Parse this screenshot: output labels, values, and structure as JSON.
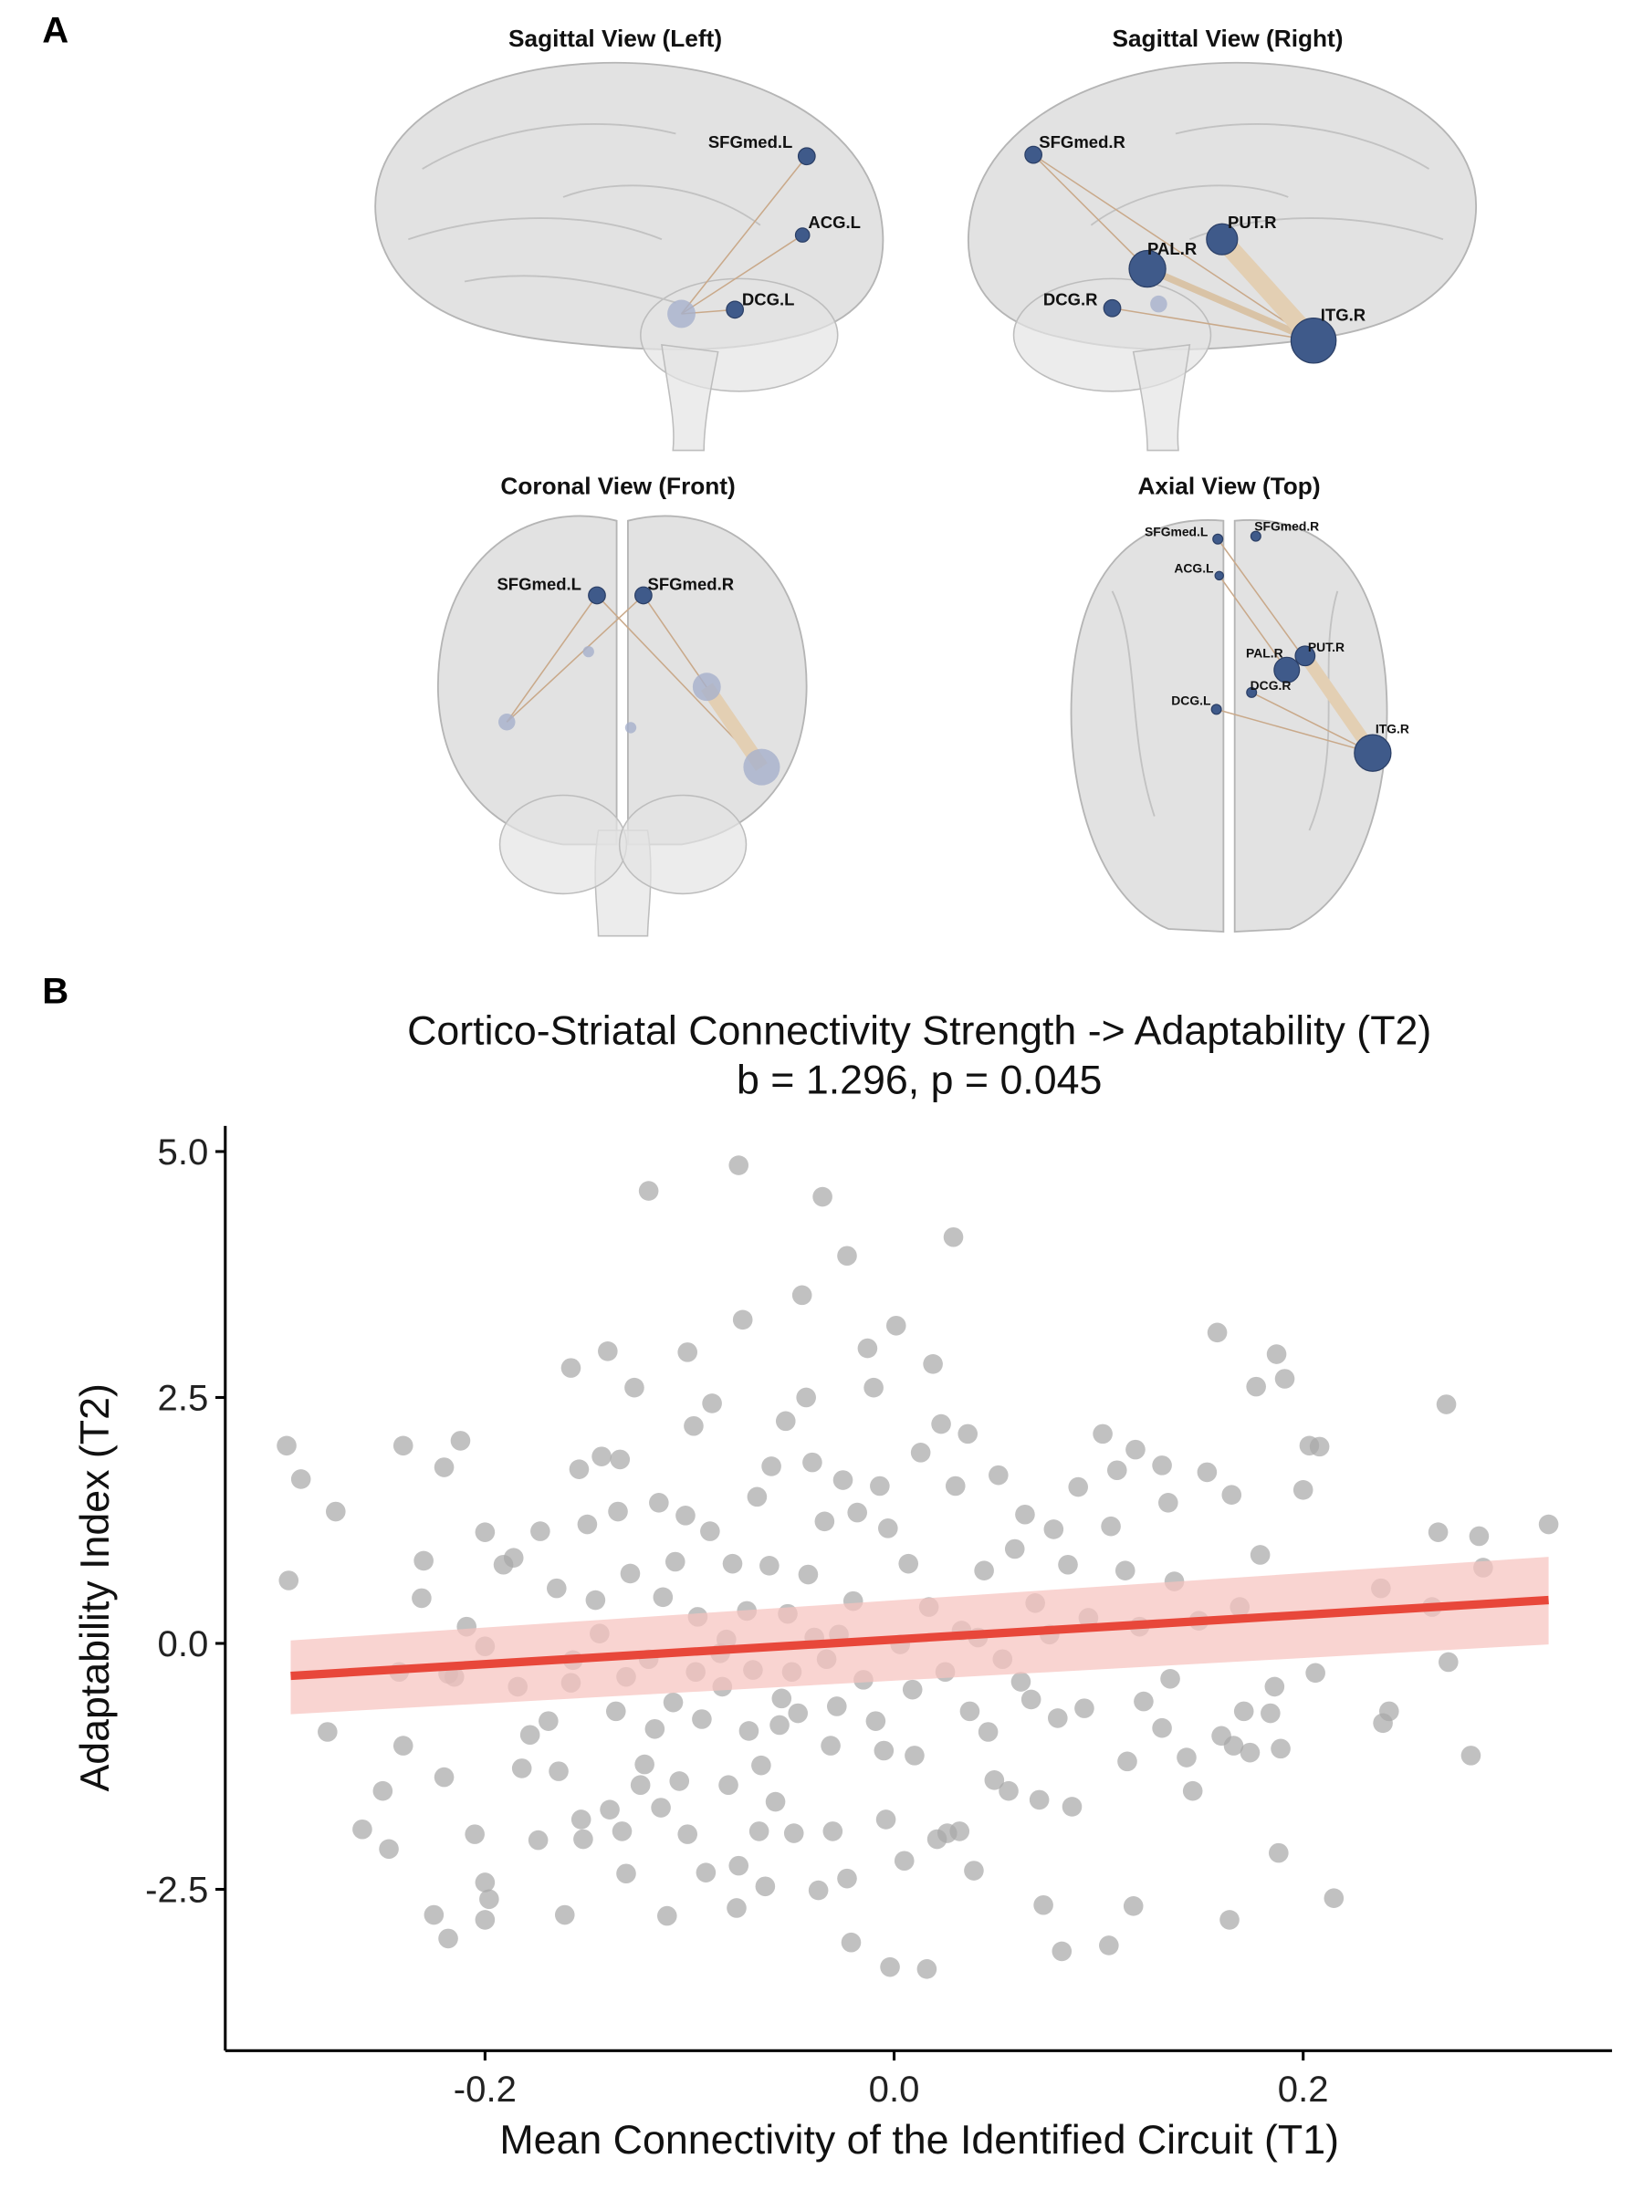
{
  "panel_a": {
    "label": "A",
    "views": [
      {
        "title": "Sagittal View (Left)",
        "nodes": [
          "SFGmed.L",
          "ACG.L",
          "DCG.L"
        ]
      },
      {
        "title": "Sagittal View (Right)",
        "nodes": [
          "SFGmed.R",
          "PUT.R",
          "PAL.R",
          "DCG.R",
          "ITG.R"
        ]
      },
      {
        "title": "Coronal View (Front)",
        "nodes": [
          "SFGmed.L",
          "SFGmed.R"
        ]
      },
      {
        "title": "Axial View (Top)",
        "nodes": [
          "SFGmed.L",
          "SFGmed.R",
          "ACG.L",
          "PAL.R",
          "PUT.R",
          "DCG.R",
          "DCG.L",
          "ITG.R"
        ]
      }
    ]
  },
  "chart_data": {
    "type": "scatter",
    "panel_label": "B",
    "title": "Cortico-Striatal Connectivity Strength -> Adaptability (T2)",
    "subtitle": "b = 1.296, p = 0.045",
    "x_label": "Mean Connectivity of the Identified Circuit (T1)",
    "y_label": "Adaptability Index (T2)",
    "xlim": [
      -0.327,
      0.351
    ],
    "ylim": [
      -4.14,
      5.26
    ],
    "xticks": [
      -0.2,
      {
        "value": 0,
        "label": "0.0"
      },
      0.2
    ],
    "yticks": [
      -2.5,
      {
        "value": 0,
        "label": "0.0"
      },
      2.5,
      {
        "value": 5,
        "label": "5.0"
      }
    ],
    "series": [
      {
        "color": "#a6a6a6",
        "x": [
          -0.297,
          -0.296,
          -0.29,
          -0.277,
          -0.273,
          -0.26,
          -0.25,
          -0.247,
          -0.24,
          -0.242,
          -0.24,
          -0.231,
          -0.23,
          -0.225,
          -0.22,
          -0.218,
          -0.218,
          -0.215,
          -0.22,
          -0.212,
          -0.209,
          -0.205,
          -0.2,
          -0.2,
          -0.2,
          -0.2,
          -0.198,
          -0.191,
          -0.186,
          -0.184,
          -0.182,
          -0.178,
          -0.174,
          -0.173,
          -0.169,
          -0.165,
          -0.164,
          -0.161,
          -0.158,
          -0.157,
          -0.158,
          -0.154,
          -0.153,
          -0.152,
          -0.15,
          -0.146,
          -0.144,
          -0.143,
          -0.14,
          -0.139,
          -0.136,
          -0.135,
          -0.134,
          -0.133,
          -0.131,
          -0.131,
          -0.129,
          -0.127,
          -0.124,
          -0.122,
          -0.12,
          -0.12,
          -0.117,
          -0.115,
          -0.114,
          -0.113,
          -0.111,
          -0.108,
          -0.107,
          -0.105,
          -0.102,
          -0.101,
          -0.101,
          -0.098,
          -0.097,
          -0.096,
          -0.094,
          -0.092,
          -0.09,
          -0.089,
          -0.085,
          -0.084,
          -0.082,
          -0.081,
          -0.079,
          -0.077,
          -0.076,
          -0.076,
          -0.074,
          -0.072,
          -0.071,
          -0.069,
          -0.067,
          -0.066,
          -0.065,
          -0.063,
          -0.061,
          -0.06,
          -0.058,
          -0.056,
          -0.055,
          -0.053,
          -0.052,
          -0.05,
          -0.049,
          -0.047,
          -0.045,
          -0.043,
          -0.042,
          -0.04,
          -0.039,
          -0.037,
          -0.035,
          -0.034,
          -0.033,
          -0.031,
          -0.03,
          -0.028,
          -0.027,
          -0.025,
          -0.023,
          -0.023,
          -0.021,
          -0.02,
          -0.018,
          -0.015,
          -0.013,
          -0.01,
          -0.009,
          -0.007,
          -0.005,
          -0.004,
          -0.003,
          -0.002,
          0.001,
          0.003,
          0.005,
          0.007,
          0.009,
          0.01,
          0.013,
          0.016,
          0.017,
          0.019,
          0.021,
          0.023,
          0.025,
          0.026,
          0.029,
          0.03,
          0.032,
          0.033,
          0.036,
          0.037,
          0.039,
          0.041,
          0.044,
          0.046,
          0.049,
          0.051,
          0.053,
          0.056,
          0.059,
          0.062,
          0.064,
          0.067,
          0.069,
          0.071,
          0.073,
          0.076,
          0.078,
          0.08,
          0.082,
          0.085,
          0.087,
          0.09,
          0.093,
          0.095,
          0.102,
          0.105,
          0.106,
          0.109,
          0.113,
          0.114,
          0.117,
          0.118,
          0.12,
          0.122,
          0.131,
          0.131,
          0.134,
          0.135,
          0.137,
          0.143,
          0.146,
          0.149,
          0.153,
          0.158,
          0.16,
          0.164,
          0.165,
          0.166,
          0.169,
          0.171,
          0.174,
          0.177,
          0.179,
          0.184,
          0.186,
          0.187,
          0.188,
          0.189,
          0.191,
          0.2,
          0.203,
          0.206,
          0.208,
          0.215,
          0.238,
          0.239,
          0.242,
          0.263,
          0.266,
          0.27,
          0.271,
          0.282,
          0.286,
          0.288,
          0.32
        ],
        "values": [
          2.01,
          0.64,
          1.67,
          -0.9,
          1.34,
          -1.89,
          -1.5,
          -2.09,
          2.01,
          -0.29,
          -1.04,
          0.46,
          0.84,
          -2.76,
          -1.36,
          -3.0,
          -0.31,
          -0.34,
          1.79,
          2.06,
          0.17,
          -1.94,
          1.13,
          -0.03,
          -2.43,
          -2.81,
          -2.6,
          0.8,
          0.87,
          -0.44,
          -1.27,
          -0.93,
          -2.0,
          1.14,
          -0.79,
          0.56,
          -1.3,
          -2.76,
          2.8,
          -0.17,
          -0.4,
          1.77,
          -1.79,
          -1.99,
          1.21,
          0.44,
          0.1,
          1.9,
          2.97,
          -1.69,
          -0.69,
          1.34,
          1.87,
          -1.91,
          -2.34,
          -0.34,
          0.71,
          2.6,
          -1.44,
          -1.23,
          4.6,
          -0.16,
          -0.87,
          1.43,
          -1.67,
          0.47,
          -2.77,
          -0.6,
          0.83,
          -1.4,
          1.3,
          -1.94,
          2.96,
          2.21,
          -0.29,
          0.27,
          -0.77,
          -2.33,
          1.14,
          2.44,
          -0.1,
          -0.44,
          0.04,
          -1.44,
          0.81,
          -2.69,
          -2.26,
          4.86,
          3.29,
          0.33,
          -0.89,
          -0.27,
          1.49,
          -1.91,
          -1.24,
          -2.47,
          0.79,
          1.8,
          -1.61,
          -0.83,
          -0.56,
          2.26,
          0.3,
          -0.29,
          -1.93,
          -0.71,
          3.54,
          2.5,
          0.7,
          1.84,
          0.06,
          -2.51,
          4.54,
          1.24,
          -0.16,
          -1.04,
          -1.91,
          -0.64,
          0.09,
          1.66,
          -2.39,
          3.94,
          -3.04,
          0.43,
          1.33,
          -0.37,
          3.0,
          2.6,
          -0.79,
          1.6,
          -1.09,
          -1.79,
          1.17,
          -3.29,
          3.23,
          -0.01,
          -2.21,
          0.81,
          -0.47,
          -1.14,
          1.94,
          -3.31,
          0.37,
          2.84,
          -1.99,
          2.23,
          -0.29,
          -1.93,
          4.13,
          1.6,
          -1.91,
          0.13,
          2.13,
          -0.69,
          -2.31,
          0.06,
          0.74,
          -0.9,
          -1.39,
          1.71,
          -0.16,
          -1.5,
          0.96,
          -0.39,
          1.31,
          -0.57,
          0.41,
          -1.59,
          -2.66,
          0.09,
          1.16,
          -0.76,
          -3.13,
          0.8,
          -1.66,
          1.59,
          -0.66,
          0.26,
          2.13,
          -3.07,
          1.19,
          1.76,
          0.74,
          -1.2,
          -2.67,
          1.97,
          0.17,
          -0.59,
          1.81,
          -0.86,
          1.43,
          -0.36,
          0.63,
          -1.16,
          -1.5,
          0.23,
          1.74,
          3.16,
          -0.94,
          -2.81,
          1.51,
          -1.04,
          0.37,
          -0.69,
          -1.11,
          2.61,
          0.9,
          -0.71,
          -0.44,
          2.94,
          -2.13,
          -1.07,
          2.69,
          1.56,
          2.01,
          -0.3,
          2.0,
          -2.59,
          0.56,
          -0.81,
          -0.69,
          0.37,
          1.13,
          2.43,
          -0.19,
          -1.14,
          1.09,
          0.77,
          1.21
        ]
      }
    ],
    "fit": {
      "color": "#e8473a",
      "band_color": "#f7c2bd",
      "x": [
        -0.295,
        0.32
      ],
      "values": [
        -0.33,
        0.44
      ],
      "ci_lower": [
        -0.72,
        -0.01
      ],
      "ci_upper": [
        0.03,
        0.88
      ]
    }
  }
}
